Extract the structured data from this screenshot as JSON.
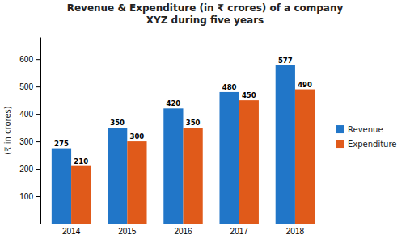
{
  "chart_data": {
    "type": "bar",
    "title": "Revenue & Expenditure (in ₹ crores) of a company\nXYZ during five years",
    "categories": [
      "2014",
      "2015",
      "2016",
      "2017",
      "2018"
    ],
    "series": [
      {
        "name": "Revenue",
        "color": "#2176C8",
        "values": [
          275,
          350,
          420,
          480,
          577
        ]
      },
      {
        "name": "Expenditure",
        "color": "#E05A1A",
        "values": [
          210,
          300,
          350,
          450,
          490
        ]
      }
    ],
    "ylabel": "(₹ in crores)",
    "ylim": [
      0,
      680
    ],
    "yticks": [
      100,
      200,
      300,
      400,
      500,
      600
    ],
    "data_labels": true,
    "legend": "right",
    "grid": false
  }
}
